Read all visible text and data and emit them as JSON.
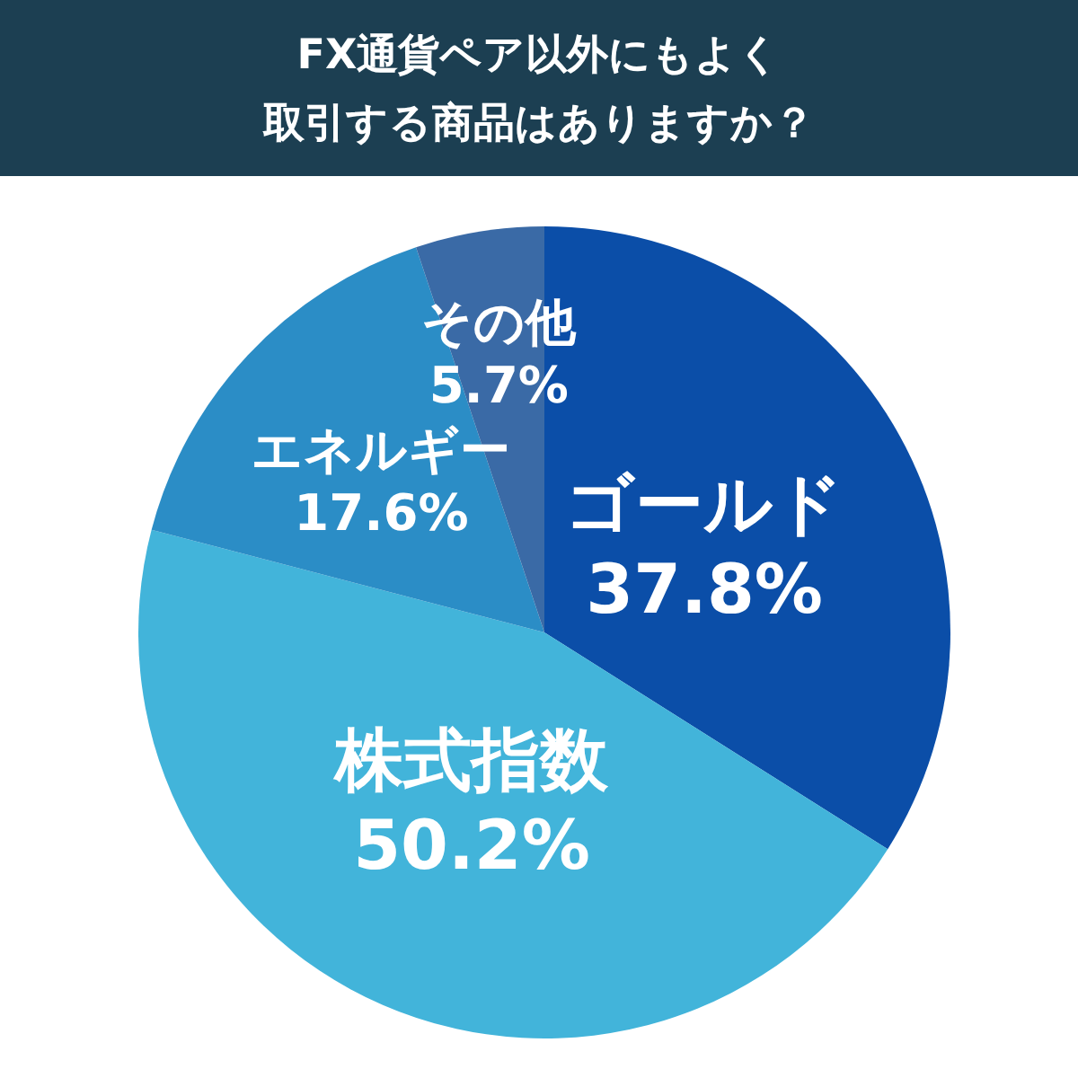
{
  "chart_data": {
    "type": "pie",
    "title": "FX通貨ペア以外にもよく取引する商品はありますか？",
    "categories": [
      "ゴールド",
      "株式指数",
      "エネルギー",
      "その他"
    ],
    "values": [
      37.8,
      50.2,
      17.6,
      5.7
    ],
    "value_labels": [
      "37.8%",
      "50.2%",
      "17.6%",
      "5.7%"
    ],
    "colors": [
      "#0b4ea8",
      "#42b4da",
      "#2b8dc6",
      "#3a6aa6"
    ]
  }
}
